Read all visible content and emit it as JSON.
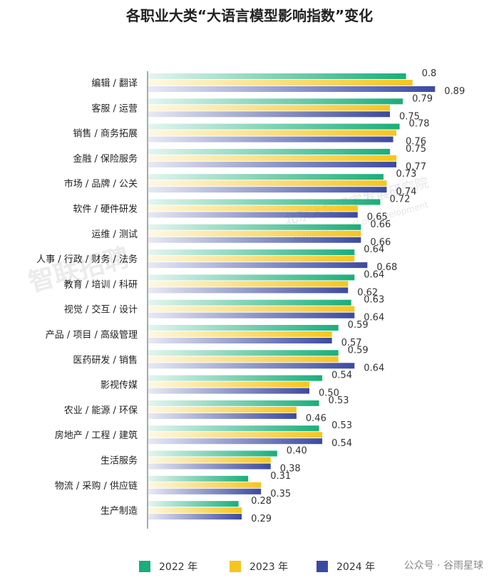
{
  "chart_data": {
    "type": "bar",
    "orientation": "horizontal",
    "title": "各职业大类“大语言模型影响指数”变化",
    "categories": [
      "编辑 / 翻译",
      "客服 / 运营",
      "销售 / 商务拓展",
      "金融 / 保险服务",
      "市场 / 品牌 / 公关",
      "软件 / 硬件研发",
      "运维 / 测试",
      "人事 / 行政 / 财务 / 法务",
      "教育 / 培训 / 科研",
      "视觉 / 交互 / 设计",
      "产品 / 项目 / 高级管理",
      "医药研发 / 销售",
      "影视传媒",
      "农业 / 能源 / 环保",
      "房地产 / 工程 / 建筑",
      "生活服务",
      "物流 / 采购 / 供应链",
      "生产制造"
    ],
    "series": [
      {
        "name": "2022 年",
        "color": "#1aae7a",
        "values": [
          0.8,
          0.79,
          0.78,
          0.75,
          0.73,
          0.72,
          0.66,
          0.64,
          0.64,
          0.63,
          0.59,
          0.59,
          0.54,
          0.53,
          0.53,
          0.4,
          0.31,
          0.28
        ]
      },
      {
        "name": "2023 年",
        "color": "#f7c51d",
        "values": [
          0.82,
          0.75,
          0.77,
          0.77,
          0.74,
          0.65,
          0.66,
          0.64,
          0.62,
          0.64,
          0.57,
          0.59,
          0.5,
          0.46,
          0.54,
          0.38,
          0.35,
          0.29
        ]
      },
      {
        "name": "2024 年",
        "color": "#3b4aa0",
        "values": [
          0.89,
          0.75,
          0.76,
          0.77,
          0.74,
          0.65,
          0.66,
          0.68,
          0.62,
          0.64,
          0.57,
          0.64,
          0.5,
          0.46,
          0.54,
          0.38,
          0.35,
          0.29
        ]
      }
    ],
    "data_labels": [
      [
        "0.8",
        "0.89"
      ],
      [
        "0.79",
        "0.75"
      ],
      [
        "0.78",
        "0.76"
      ],
      [
        "0.75",
        "0.77"
      ],
      [
        "0.73",
        "0.74"
      ],
      [
        "0.72",
        "0.65"
      ],
      [
        "0.66",
        "0.66"
      ],
      [
        "0.64",
        "0.68"
      ],
      [
        "0.64",
        "0.62"
      ],
      [
        "0.63",
        "0.64"
      ],
      [
        "0.59",
        "0.57"
      ],
      [
        "0.59",
        "0.64"
      ],
      [
        "0.54",
        "0.50"
      ],
      [
        "0.53",
        "0.46"
      ],
      [
        "0.53",
        "0.54"
      ],
      [
        "0.40",
        "0.38"
      ],
      [
        "0.31",
        "0.35"
      ],
      [
        "0.28",
        "0.29"
      ]
    ],
    "xlim": [
      0,
      0.9
    ],
    "grid": false,
    "legend": "bottom"
  },
  "watermark": {
    "brand": "智联招聘",
    "institute": "北京大学国家发展研究院",
    "institute_en": "National School of Development"
  },
  "credit": "公众号 · 谷雨星球"
}
